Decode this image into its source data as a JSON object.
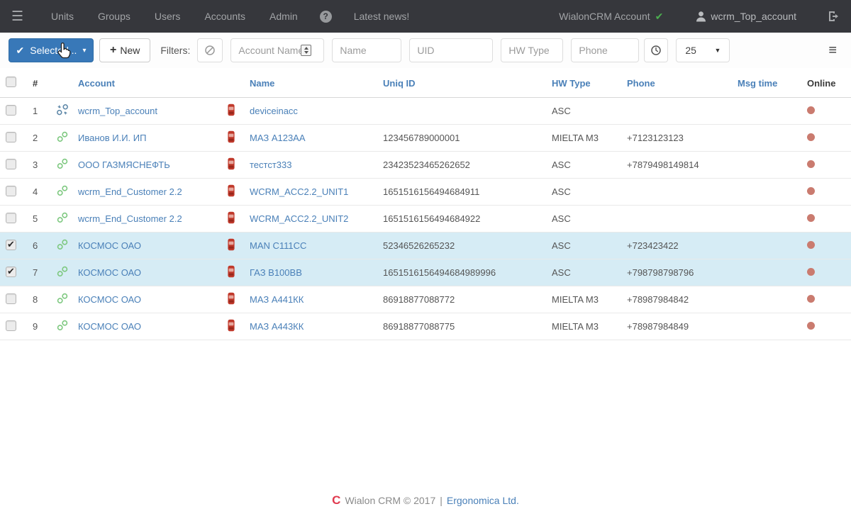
{
  "topbar": {
    "menu": [
      "Units",
      "Groups",
      "Users",
      "Accounts",
      "Admin"
    ],
    "help_icon": "?",
    "news": "Latest news!",
    "account_label": "WialonCRM Account",
    "account_check": "✔",
    "user": "wcrm_Top_account"
  },
  "toolbar": {
    "selected_label": "Selected...",
    "selected_check": "✔",
    "caret": "▾",
    "new_plus": "+",
    "new_label": "New",
    "filters_label": "Filters:",
    "filters": {
      "account_name_placeholder": "Account Name",
      "name_placeholder": "Name",
      "uid_placeholder": "UID",
      "hw_type_placeholder": "HW Type",
      "phone_placeholder": "Phone"
    },
    "page_size": "25"
  },
  "table": {
    "headers": [
      "#",
      "Account",
      "Name",
      "Uniq ID",
      "HW Type",
      "Phone",
      "Msg time",
      "Online"
    ],
    "rows": [
      {
        "num": "1",
        "checked": false,
        "selected": false,
        "link_state": "unlinked",
        "account": "wcrm_Top_account",
        "name": "deviceinacc",
        "uniq_id": "",
        "hw_type": "ASC",
        "phone": "",
        "msg_time": "",
        "online": true
      },
      {
        "num": "2",
        "checked": false,
        "selected": false,
        "link_state": "linked",
        "account": "Иванов И.И. ИП",
        "name": "МАЗ А123АА",
        "uniq_id": "123456789000001",
        "hw_type": "MIELTA M3",
        "phone": "+7123123123",
        "msg_time": "",
        "online": true
      },
      {
        "num": "3",
        "checked": false,
        "selected": false,
        "link_state": "linked",
        "account": "ООО ГАЗМЯСНЕФТЬ",
        "name": "тестст333",
        "uniq_id": "23423523465262652",
        "hw_type": "ASC",
        "phone": "+7879498149814",
        "msg_time": "",
        "online": true
      },
      {
        "num": "4",
        "checked": false,
        "selected": false,
        "link_state": "linked",
        "account": "wcrm_End_Customer 2.2",
        "name": "WCRM_ACC2.2_UNIT1",
        "uniq_id": "1651516156494684911",
        "hw_type": "ASC",
        "phone": "",
        "msg_time": "",
        "online": true
      },
      {
        "num": "5",
        "checked": false,
        "selected": false,
        "link_state": "linked",
        "account": "wcrm_End_Customer 2.2",
        "name": "WCRM_ACC2.2_UNIT2",
        "uniq_id": "1651516156494684922",
        "hw_type": "ASC",
        "phone": "",
        "msg_time": "",
        "online": true
      },
      {
        "num": "6",
        "checked": true,
        "selected": true,
        "link_state": "linked",
        "account": "КОСМОС ОАО",
        "name": "MAN C111CC",
        "uniq_id": "52346526265232",
        "hw_type": "ASC",
        "phone": "+723423422",
        "msg_time": "",
        "online": true
      },
      {
        "num": "7",
        "checked": true,
        "selected": true,
        "link_state": "linked",
        "account": "КОСМОС ОАО",
        "name": "ГАЗ В100ВВ",
        "uniq_id": "1651516156494684989996",
        "hw_type": "ASC",
        "phone": "+798798798796",
        "msg_time": "",
        "online": true
      },
      {
        "num": "8",
        "checked": false,
        "selected": false,
        "link_state": "linked",
        "account": "КОСМОС ОАО",
        "name": "МАЗ А441КК",
        "uniq_id": "86918877088772",
        "hw_type": "MIELTA M3",
        "phone": "+78987984842",
        "msg_time": "",
        "online": true
      },
      {
        "num": "9",
        "checked": false,
        "selected": false,
        "link_state": "linked",
        "account": "КОСМОС ОАО",
        "name": "МАЗ А443КК",
        "uniq_id": "86918877088775",
        "hw_type": "MIELTA M3",
        "phone": "+78987984849",
        "msg_time": "",
        "online": true
      }
    ]
  },
  "footer": {
    "copy": "Wialon CRM © 2017",
    "divider": "|",
    "company": "Ergonomica Ltd."
  },
  "colors": {
    "topbar_bg": "#36373c",
    "primary_button": "#3878b8",
    "link_blue": "#4a80b8",
    "selected_row_bg": "#d6ecf5",
    "online_dot": "#ca7b6f",
    "linked_icon_green": "#7dc87f",
    "unlinked_icon_gray": "#5d87a8",
    "check_green": "#4caf50",
    "device_icon_red": "#c0392b"
  }
}
